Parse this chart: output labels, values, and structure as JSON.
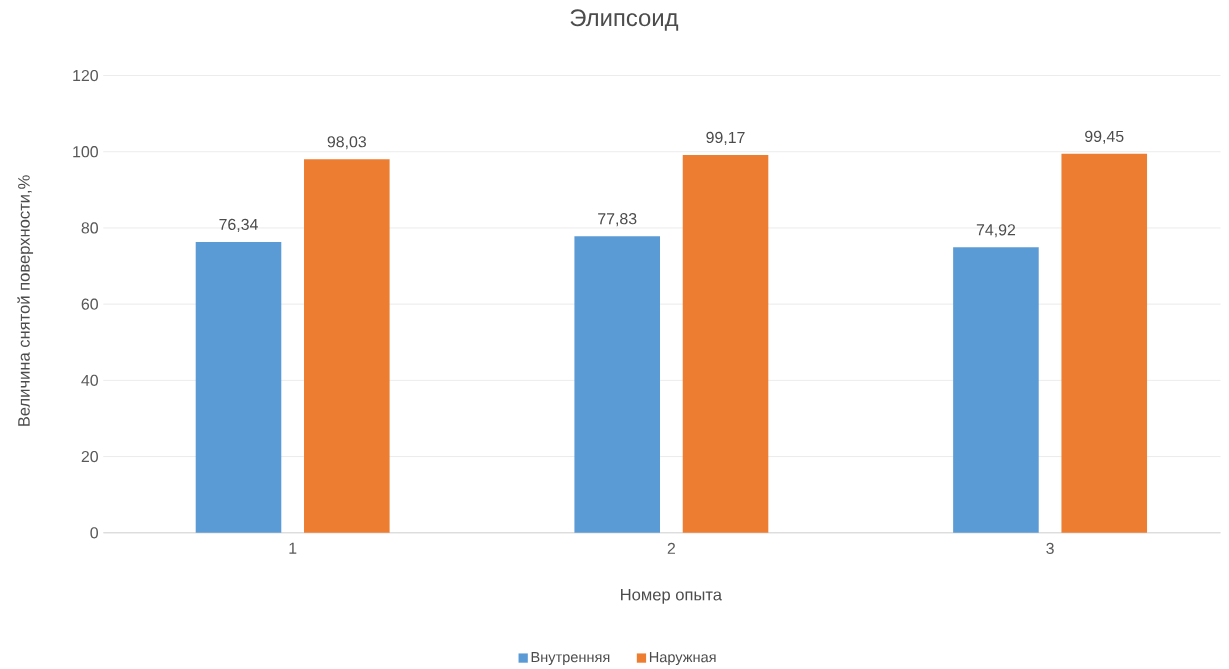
{
  "chart_data": {
    "type": "bar",
    "title": "Элипсоид",
    "xlabel": "Номер опыта",
    "ylabel": "Величина снятой поверхности,%",
    "categories": [
      "1",
      "2",
      "3"
    ],
    "series": [
      {
        "name": "Внутренняя",
        "color": "#5b9bd5",
        "values": [
          76.34,
          77.83,
          74.92
        ],
        "value_labels": [
          "76,34",
          "77,83",
          "74,92"
        ]
      },
      {
        "name": "Наружная",
        "color": "#ed7d31",
        "values": [
          98.03,
          99.17,
          99.45
        ],
        "value_labels": [
          "98,03",
          "99,17",
          "99,45"
        ]
      }
    ],
    "ylim": [
      0,
      120
    ],
    "yticks": [
      0,
      20,
      40,
      60,
      80,
      100,
      120
    ],
    "grid": "y",
    "legend": "bottom"
  }
}
